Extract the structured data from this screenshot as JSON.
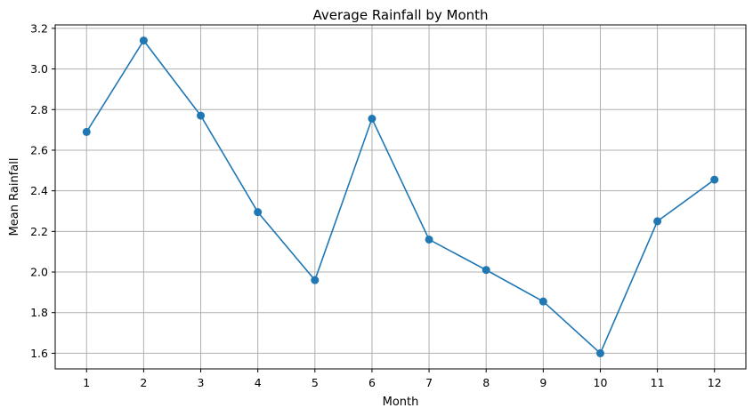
{
  "chart_data": {
    "type": "line",
    "title": "Average Rainfall by Month",
    "xlabel": "Month",
    "ylabel": "Mean Rainfall",
    "x": [
      1,
      2,
      3,
      4,
      5,
      6,
      7,
      8,
      9,
      10,
      11,
      12
    ],
    "series": [
      {
        "values": [
          2.69,
          3.14,
          2.77,
          2.295,
          1.96,
          2.755,
          2.16,
          2.01,
          1.855,
          1.6,
          2.25,
          2.455
        ]
      }
    ],
    "xticks": [
      "1",
      "2",
      "3",
      "4",
      "5",
      "6",
      "7",
      "8",
      "9",
      "10",
      "11",
      "12"
    ],
    "yticks": [
      "1.6",
      "1.8",
      "2.0",
      "2.2",
      "2.4",
      "2.6",
      "2.8",
      "3.0",
      "3.2"
    ],
    "xlim": [
      0.45,
      12.55
    ],
    "ylim": [
      1.523,
      3.217
    ],
    "grid": true,
    "marker": "circle",
    "colors": {
      "series": "#1f77b4",
      "grid": "#b0b0b0"
    }
  }
}
